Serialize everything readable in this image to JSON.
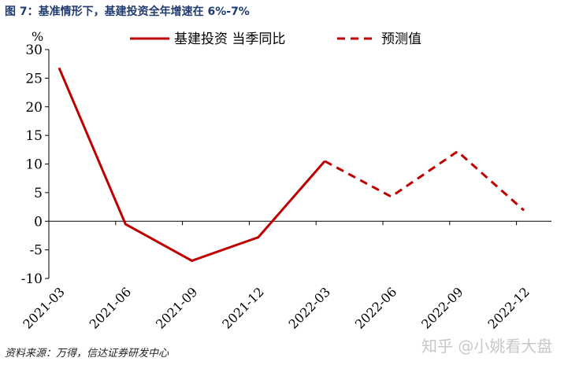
{
  "title": "图 7：基准情形下，基建投资全年增速在 6%-7%",
  "source": "资料来源：万得，信达证券研发中心",
  "watermark": "知乎 @小姚看大盘",
  "chart_data": {
    "type": "line",
    "ylabel": "%",
    "ylim": [
      -10,
      30
    ],
    "yticks": [
      30,
      25,
      20,
      15,
      10,
      5,
      0,
      -5,
      -10
    ],
    "categories": [
      "2021-03",
      "2021-06",
      "2021-09",
      "2021-12",
      "2022-03",
      "2022-06",
      "2022-09",
      "2022-12"
    ],
    "series": [
      {
        "name": "基建投资 当季同比",
        "style": "solid",
        "color": "#c00000",
        "values": [
          26.8,
          -0.5,
          -6.9,
          -2.8,
          10.5,
          null,
          null,
          null
        ]
      },
      {
        "name": "预测值",
        "style": "dashed",
        "color": "#c00000",
        "values": [
          null,
          null,
          null,
          null,
          10.5,
          4.3,
          12.2,
          1.9
        ]
      }
    ],
    "legend": "top"
  }
}
